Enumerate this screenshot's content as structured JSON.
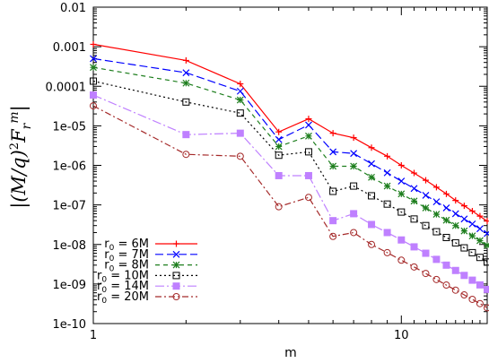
{
  "chart_data": {
    "type": "line",
    "xlabel": "m",
    "ylabel": "|(M/q)²F_r^m|",
    "xscale": "log",
    "yscale": "log",
    "xlim": [
      1,
      19
    ],
    "ylim": [
      1e-10,
      0.01
    ],
    "grid": false,
    "legend_position": "bottom-left",
    "x_ticks": [
      {
        "value": 1,
        "label": "1"
      },
      {
        "value": 10,
        "label": "10"
      }
    ],
    "y_ticks": [
      {
        "value": 1e-10,
        "label": "1e-10"
      },
      {
        "value": 1e-09,
        "label": "1e-09"
      },
      {
        "value": 1e-08,
        "label": "1e-08"
      },
      {
        "value": 1e-07,
        "label": "1e-07"
      },
      {
        "value": 1e-06,
        "label": "1e-06"
      },
      {
        "value": 1e-05,
        "label": "1e-05"
      },
      {
        "value": 0.0001,
        "label": "0.0001"
      },
      {
        "value": 0.001,
        "label": "0.001"
      },
      {
        "value": 0.01,
        "label": "0.01"
      }
    ],
    "x": [
      1,
      2,
      3,
      4,
      5,
      6,
      7,
      8,
      9,
      10,
      11,
      12,
      13,
      14,
      15,
      16,
      17,
      18,
      19
    ],
    "series": [
      {
        "name": "r0 = 6M",
        "r0_label": "6M",
        "color": "#ff0000",
        "dash": "",
        "marker": "plus",
        "values": [
          0.00115,
          0.00045,
          0.000115,
          7e-06,
          1.5e-05,
          6.5e-06,
          5e-06,
          2.8e-06,
          1.7e-06,
          1e-06,
          6.4e-07,
          4.2e-07,
          2.8e-07,
          1.9e-07,
          1.3e-07,
          9.5e-08,
          7e-08,
          5.2e-08,
          3.9e-08
        ]
      },
      {
        "name": "r0 = 7M",
        "r0_label": "7M",
        "color": "#0000ff",
        "dash": "9,4",
        "marker": "cross",
        "values": [
          0.0005,
          0.00022,
          7.5e-05,
          4.5e-06,
          1.05e-05,
          2.2e-06,
          2e-06,
          1.1e-06,
          6.5e-07,
          4e-07,
          2.6e-07,
          1.75e-07,
          1.2e-07,
          8.4e-08,
          6e-08,
          4.4e-08,
          3.3e-08,
          2.5e-08,
          1.9e-08
        ]
      },
      {
        "name": "r0 = 8M",
        "r0_label": "8M",
        "color": "#1f7f1f",
        "dash": "5,4",
        "marker": "star",
        "values": [
          0.0003,
          0.00012,
          4.5e-05,
          3e-06,
          5.5e-06,
          9.5e-07,
          9.5e-07,
          5e-07,
          3e-07,
          1.9e-07,
          1.25e-07,
          8.4e-08,
          5.8e-08,
          4.1e-08,
          3e-08,
          2.2e-08,
          1.65e-08,
          1.25e-08,
          9.5e-09
        ]
      },
      {
        "name": "r0 = 10M",
        "r0_label": "10M",
        "color": "#000000",
        "dash": "2,3",
        "marker": "square",
        "values": [
          0.000135,
          4e-05,
          2.1e-05,
          1.8e-06,
          2.2e-06,
          2.2e-07,
          3e-07,
          1.7e-07,
          1.05e-07,
          6.6e-08,
          4.4e-08,
          3e-08,
          2.1e-08,
          1.5e-08,
          1.1e-08,
          8.2e-09,
          6.2e-09,
          4.7e-09,
          3.6e-09
        ]
      },
      {
        "name": "r0 = 14M",
        "r0_label": "14M",
        "color": "#bf80ff",
        "dash": "10,3,2,3",
        "marker": "filled-square",
        "values": [
          6e-05,
          6e-06,
          6.5e-06,
          5.5e-07,
          5.5e-07,
          4e-08,
          6e-08,
          3.2e-08,
          2e-08,
          1.3e-08,
          8.7e-09,
          6e-09,
          4.2e-09,
          3e-09,
          2.2e-09,
          1.65e-09,
          1.25e-09,
          9.5e-10,
          7.3e-10
        ]
      },
      {
        "name": "r0 = 20M",
        "r0_label": "20M",
        "color": "#a52a2a",
        "dash": "7,3,2,3",
        "marker": "circle",
        "values": [
          3.2e-05,
          1.9e-06,
          1.7e-06,
          9e-08,
          1.55e-07,
          1.6e-08,
          2e-08,
          1e-08,
          6.2e-09,
          4e-09,
          2.7e-09,
          1.85e-09,
          1.3e-09,
          9.4e-10,
          7e-10,
          5.3e-10,
          4.1e-10,
          3.2e-10,
          2.5e-10
        ]
      }
    ]
  }
}
